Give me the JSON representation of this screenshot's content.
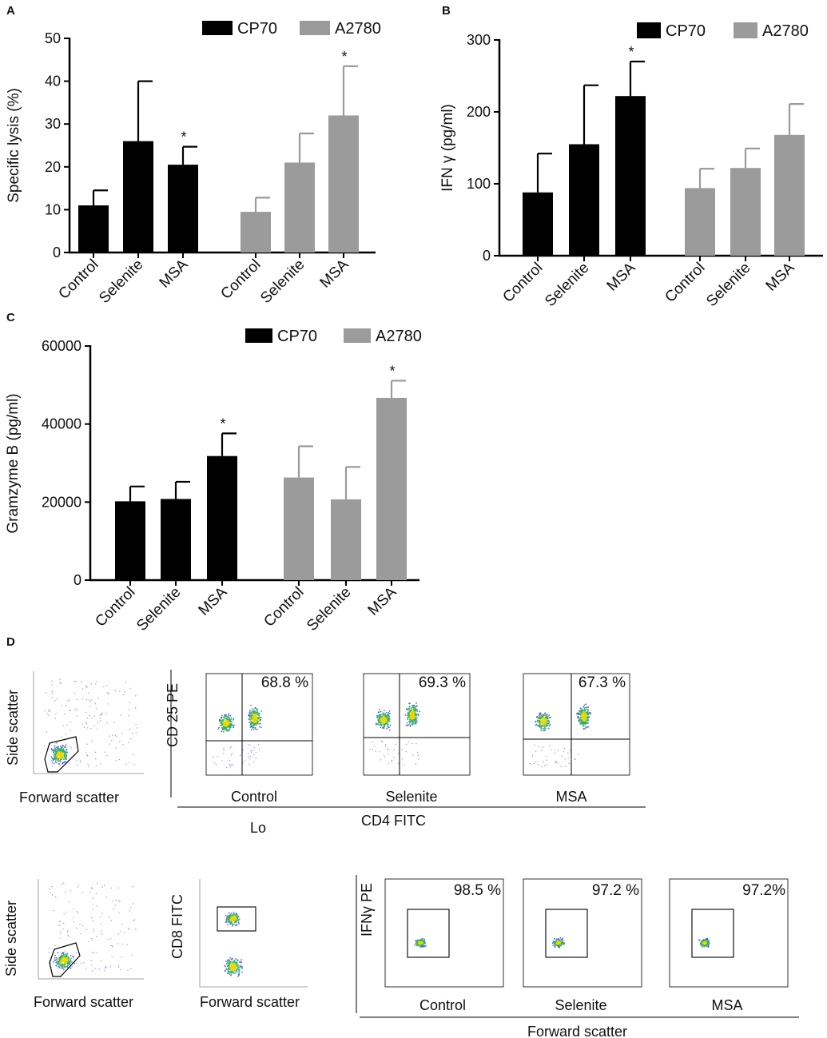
{
  "chart_data": [
    {
      "panel": "A",
      "type": "bar",
      "ylabel": "Specific lysis (%)",
      "ylim": [
        0,
        50
      ],
      "yticks": [
        0,
        10,
        20,
        30,
        40,
        50
      ],
      "legend": [
        {
          "name": "CP70",
          "color": "#000000"
        },
        {
          "name": "A2780",
          "color": "#9b9b9b"
        }
      ],
      "groups": [
        {
          "name": "CP70",
          "color": "#000000",
          "categories": [
            "Control",
            "Selenite",
            "MSA"
          ],
          "values": [
            11,
            26,
            20.5
          ],
          "errors": [
            3.5,
            14,
            4.2
          ],
          "stars": [
            "",
            "",
            "*"
          ]
        },
        {
          "name": "A2780",
          "color": "#9b9b9b",
          "categories": [
            "Control",
            "Selenite",
            "MSA"
          ],
          "values": [
            9.5,
            21,
            32
          ],
          "errors": [
            3.3,
            6.8,
            11.5
          ],
          "stars": [
            "",
            "",
            "*"
          ]
        }
      ]
    },
    {
      "panel": "B",
      "type": "bar",
      "ylabel": "IFN γ (pg/ml)",
      "ylim": [
        0,
        300
      ],
      "yticks": [
        0,
        100,
        200,
        300
      ],
      "legend": [
        {
          "name": "CP70",
          "color": "#000000"
        },
        {
          "name": "A2780",
          "color": "#9b9b9b"
        }
      ],
      "groups": [
        {
          "name": "CP70",
          "color": "#000000",
          "categories": [
            "Control",
            "Selenite",
            "MSA"
          ],
          "values": [
            88,
            155,
            222
          ],
          "errors": [
            54,
            82,
            48
          ],
          "stars": [
            "",
            "",
            "*"
          ]
        },
        {
          "name": "A2780",
          "color": "#9b9b9b",
          "categories": [
            "Control",
            "Selenite",
            "MSA"
          ],
          "values": [
            94,
            122,
            168
          ],
          "errors": [
            27,
            27,
            43
          ],
          "stars": [
            "",
            "",
            ""
          ]
        }
      ]
    },
    {
      "panel": "C",
      "type": "bar",
      "ylabel": "Gramzyme B (pg/ml)",
      "ylim": [
        0,
        60000
      ],
      "yticks": [
        0,
        20000,
        40000,
        60000
      ],
      "legend": [
        {
          "name": "CP70",
          "color": "#000000"
        },
        {
          "name": "A2780",
          "color": "#9b9b9b"
        }
      ],
      "groups": [
        {
          "name": "CP70",
          "color": "#000000",
          "categories": [
            "Control",
            "Selenite",
            "MSA"
          ],
          "values": [
            20200,
            20800,
            31800
          ],
          "errors": [
            3800,
            4400,
            5800
          ],
          "stars": [
            "",
            "",
            "*"
          ]
        },
        {
          "name": "A2780",
          "color": "#9b9b9b",
          "categories": [
            "Control",
            "Selenite",
            "MSA"
          ],
          "values": [
            26300,
            20700,
            46700
          ],
          "errors": [
            8000,
            8300,
            4400
          ],
          "stars": [
            "",
            "",
            "*"
          ]
        }
      ]
    },
    {
      "panel": "D",
      "type": "scatter",
      "row1": {
        "gate_plot": {
          "xlabel": "Forward scatter",
          "ylabel": "Side scatter"
        },
        "ylabel": "CD 25 PE",
        "plots": [
          {
            "label": "Control",
            "percent": "68.8 %"
          },
          {
            "label": "Selenite",
            "percent": "69.3 %"
          },
          {
            "label": "MSA",
            "percent": "67.3 %"
          }
        ],
        "xlabel": "CD4 FITC",
        "note": "Lo"
      },
      "row2": {
        "gate_plot": {
          "xlabel": "Forward scatter",
          "ylabel": "Side scatter"
        },
        "cd8_plot": {
          "xlabel": "Forward scatter",
          "ylabel": "CD8 FITC"
        },
        "ylabel": "IFNγ PE",
        "plots": [
          {
            "label": "Control",
            "percent": "98.5 %"
          },
          {
            "label": "Selenite",
            "percent": "97.2 %"
          },
          {
            "label": "MSA",
            "percent": "97.2%"
          }
        ],
        "xlabel": "Forward scatter"
      }
    }
  ],
  "panel_labels": [
    "A",
    "B",
    "C",
    "D"
  ]
}
